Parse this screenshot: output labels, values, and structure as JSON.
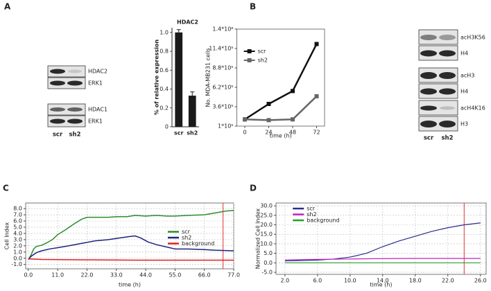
{
  "panel_labels": [
    "A",
    "B",
    "C",
    "D"
  ],
  "blots": [
    {
      "rows": [
        "HDAC2",
        "ERK1",
        "HDAC1",
        "ERK1"
      ],
      "lanes": [
        "scr",
        "sh2"
      ]
    },
    {
      "rows": [
        "acH3K56",
        "H4",
        "acH3",
        "H4",
        "acH4K16",
        "H3"
      ],
      "lanes": [
        "scr",
        "sh2"
      ]
    }
  ],
  "chart_data": [
    {
      "type": "bar",
      "title": "HDAC2",
      "ylabel": "% of relative expression",
      "categories": [
        "scr",
        "sh2"
      ],
      "values": [
        1.0,
        0.33
      ],
      "errors": [
        0.03,
        0.04
      ],
      "color": "#1a1a1a",
      "ylim": [
        0,
        1.05
      ],
      "yticks": [
        0,
        0.2,
        0.4,
        0.6,
        0.8,
        {
          "value": 1,
          "label": "1.0"
        }
      ],
      "grid": false
    },
    {
      "type": "line",
      "xlabel": "time (h)",
      "ylabel": "No. MDA-MB231 cells",
      "x": [
        0,
        24,
        48,
        72
      ],
      "xlim": [
        -8,
        80
      ],
      "xticks": [
        0,
        24,
        48,
        72
      ],
      "ylim": [
        100000,
        1400000
      ],
      "yticks": [
        {
          "value": 100000,
          "label": "1*10⁵"
        },
        {
          "value": 360000,
          "label": "3.6*10⁵"
        },
        {
          "value": 620000,
          "label": "6.2*10⁵"
        },
        {
          "value": 880000,
          "label": "8.8*10⁵"
        },
        {
          "value": 1140000,
          "label": "11.4*10⁵"
        },
        {
          "value": 1400000,
          "label": "1.4*10⁶"
        }
      ],
      "grid": false,
      "legend": "upper left",
      "marker": "square",
      "series": [
        {
          "name": "scr",
          "color": "#111111",
          "values": [
            190000,
            397000,
            570000,
            1200000
          ]
        },
        {
          "name": "sh2",
          "color": "#666666",
          "values": [
            190000,
            180000,
            190000,
            500000
          ]
        }
      ]
    },
    {
      "type": "line",
      "xlabel": "time (h)",
      "ylabel": "Cell Index",
      "xlim": [
        -1,
        77
      ],
      "ylim": [
        -1.7,
        8.9
      ],
      "xticks": [
        {
          "value": 0,
          "label": "0.0"
        },
        {
          "value": 11,
          "label": "11.0"
        },
        {
          "value": 22,
          "label": "22.0"
        },
        {
          "value": 33,
          "label": "33.0"
        },
        {
          "value": 44,
          "label": "44.0"
        },
        {
          "value": 55,
          "label": "55.0"
        },
        {
          "value": 66,
          "label": "66.0"
        },
        {
          "value": 77,
          "label": "77.0"
        }
      ],
      "yticks": [
        {
          "value": -1,
          "label": "-1.0"
        },
        {
          "value": 0,
          "label": "0.0"
        },
        {
          "value": 1,
          "label": "1.0"
        },
        {
          "value": 2,
          "label": "2.0"
        },
        {
          "value": 3,
          "label": "3.0"
        },
        {
          "value": 4,
          "label": "4.0"
        },
        {
          "value": 5,
          "label": "5.0"
        },
        {
          "value": 6,
          "label": "6.0"
        },
        {
          "value": 7,
          "label": "7.0"
        },
        {
          "value": 8,
          "label": "8.0"
        }
      ],
      "grid": true,
      "legend": "center right",
      "vline": 73,
      "vline_color": "#e03030",
      "series": [
        {
          "name": "scr",
          "color": "#2e8b2e",
          "x": [
            0,
            1,
            2,
            3,
            5,
            7,
            9,
            11,
            14,
            17,
            20,
            22,
            26,
            30,
            33,
            37,
            40,
            44,
            48,
            52,
            55,
            60,
            66,
            70,
            74,
            77
          ],
          "values": [
            -0.2,
            0.5,
            1.5,
            1.9,
            2.1,
            2.5,
            3.0,
            3.8,
            4.6,
            5.5,
            6.3,
            6.6,
            6.6,
            6.6,
            6.7,
            6.7,
            6.9,
            6.8,
            6.9,
            6.8,
            6.8,
            6.9,
            7.0,
            7.3,
            7.6,
            7.7
          ]
        },
        {
          "name": "sh2",
          "color": "#1a237e",
          "x": [
            0,
            1,
            3,
            5,
            8,
            11,
            15,
            20,
            25,
            30,
            33,
            38,
            40,
            42,
            45,
            48,
            52,
            55,
            60,
            66,
            70,
            77
          ],
          "values": [
            -0.2,
            0.3,
            0.9,
            1.2,
            1.5,
            1.7,
            2.0,
            2.4,
            2.8,
            3.0,
            3.2,
            3.5,
            3.6,
            3.3,
            2.6,
            2.2,
            1.8,
            1.5,
            1.5,
            1.4,
            1.3,
            1.2
          ]
        },
        {
          "name": "background",
          "color": "#e02020",
          "x": [
            0,
            5,
            20,
            40,
            60,
            77
          ],
          "values": [
            -0.1,
            -0.2,
            -0.25,
            -0.3,
            -0.3,
            -0.3
          ]
        }
      ]
    },
    {
      "type": "line",
      "xlabel": "time (h)",
      "ylabel": "Normalized Cell Index",
      "xlim": [
        0.9,
        26.7
      ],
      "ylim": [
        -6.1,
        31.5
      ],
      "xticks": [
        {
          "value": 2,
          "label": "2.0"
        },
        {
          "value": 6,
          "label": "6.0"
        },
        {
          "value": 10,
          "label": "10.0"
        },
        {
          "value": 14,
          "label": "14.0"
        },
        {
          "value": 18,
          "label": "18.0"
        },
        {
          "value": 22,
          "label": "22.0"
        },
        {
          "value": 26,
          "label": "26.0"
        }
      ],
      "yticks": [
        {
          "value": -5,
          "label": "-5.0"
        },
        {
          "value": 0,
          "label": "0.0"
        },
        {
          "value": 5,
          "label": "5.0"
        },
        {
          "value": 10,
          "label": "10.0"
        },
        {
          "value": 15,
          "label": "15.0"
        },
        {
          "value": 20,
          "label": "20.0"
        },
        {
          "value": 25,
          "label": "25.0"
        },
        {
          "value": 30,
          "label": "30.0"
        }
      ],
      "grid": true,
      "legend": "upper left",
      "vline": 24,
      "vline_color": "#e03030",
      "series": [
        {
          "name": "scr",
          "color": "#2a2a8a",
          "x": [
            2,
            4,
            6,
            8,
            10,
            12,
            14,
            16,
            18,
            20,
            22,
            24,
            26
          ],
          "values": [
            1.0,
            1.2,
            1.4,
            2.0,
            3.0,
            5.0,
            8.5,
            11.5,
            14.0,
            16.5,
            18.5,
            20.0,
            21.0
          ]
        },
        {
          "name": "sh2",
          "color": "#c020c0",
          "x": [
            2,
            6,
            10,
            14,
            18,
            22,
            26
          ],
          "values": [
            1.5,
            1.8,
            2.0,
            2.2,
            2.3,
            2.3,
            2.3
          ]
        },
        {
          "name": "background",
          "color": "#20a020",
          "x": [
            2,
            26
          ],
          "values": [
            0,
            0
          ]
        }
      ]
    }
  ]
}
